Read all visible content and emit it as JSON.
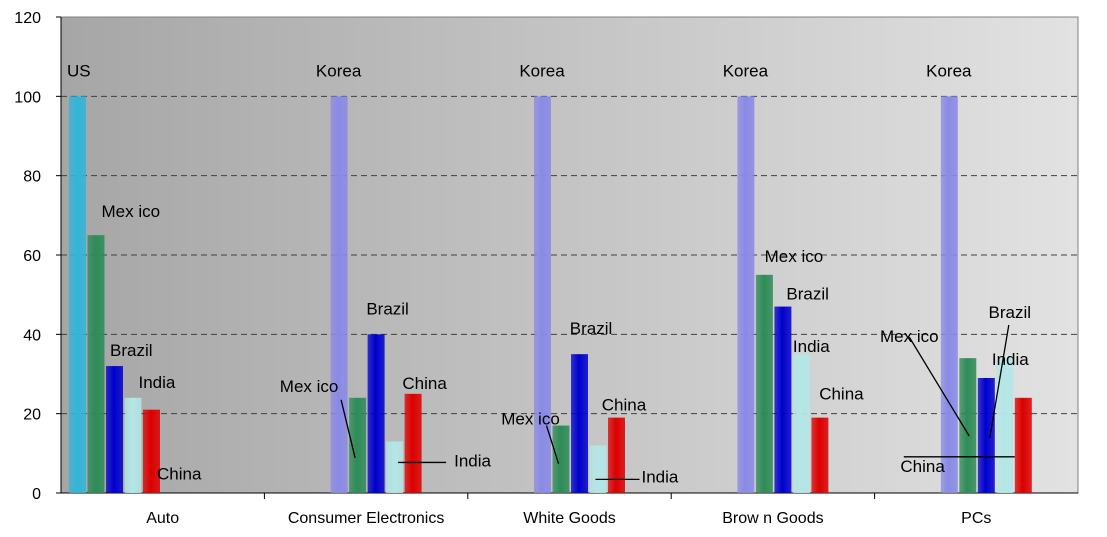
{
  "chart_data": {
    "type": "bar",
    "categories": [
      "Auto",
      "Consumer Electronics",
      "White Goods",
      "Brown Goods",
      "PCs"
    ],
    "ylim": [
      0,
      120
    ],
    "yticks": [
      "0",
      "20",
      "40",
      "60",
      "80",
      "100",
      "120"
    ],
    "grid": "dashed horizontal",
    "groups": [
      {
        "category": "Auto",
        "bars": [
          {
            "country": "US",
            "value": 100,
            "color": "#33b5d9"
          },
          {
            "country": "Mexico",
            "value": 65,
            "color": "#2e8b57"
          },
          {
            "country": "Brazil",
            "value": 32,
            "color": "#0000cd"
          },
          {
            "country": "India",
            "value": 24,
            "color": "#b4e6e6"
          },
          {
            "country": "China",
            "value": 21,
            "color": "#dc0000"
          }
        ]
      },
      {
        "category": "Consumer Electronics",
        "bars": [
          {
            "country": "Korea",
            "value": 100,
            "color": "#8a8ae6"
          },
          {
            "country": "Mexico",
            "value": 24,
            "color": "#2e8b57"
          },
          {
            "country": "Brazil",
            "value": 40,
            "color": "#0000cd"
          },
          {
            "country": "India",
            "value": 13,
            "color": "#b4e6e6"
          },
          {
            "country": "China",
            "value": 25,
            "color": "#dc0000"
          }
        ]
      },
      {
        "category": "White Goods",
        "bars": [
          {
            "country": "Korea",
            "value": 100,
            "color": "#8a8ae6"
          },
          {
            "country": "Mexico",
            "value": 17,
            "color": "#2e8b57"
          },
          {
            "country": "Brazil",
            "value": 35,
            "color": "#0000cd"
          },
          {
            "country": "India",
            "value": 12,
            "color": "#b4e6e6"
          },
          {
            "country": "China",
            "value": 19,
            "color": "#dc0000"
          }
        ]
      },
      {
        "category": "Brown Goods",
        "bars": [
          {
            "country": "Korea",
            "value": 100,
            "color": "#8a8ae6"
          },
          {
            "country": "Mexico",
            "value": 55,
            "color": "#2e8b57"
          },
          {
            "country": "Brazil",
            "value": 47,
            "color": "#0000cd"
          },
          {
            "country": "India",
            "value": 35,
            "color": "#b4e6e6"
          },
          {
            "country": "China",
            "value": 19,
            "color": "#dc0000"
          }
        ]
      },
      {
        "category": "PCs",
        "bars": [
          {
            "country": "Korea",
            "value": 100,
            "color": "#8a8ae6"
          },
          {
            "country": "Mexico",
            "value": 34,
            "color": "#2e8b57"
          },
          {
            "country": "Brazil",
            "value": 29,
            "color": "#0000cd"
          },
          {
            "country": "India",
            "value": 34,
            "color": "#b4e6e6"
          },
          {
            "country": "China",
            "value": 24,
            "color": "#dc0000"
          }
        ]
      }
    ],
    "annotations": [
      {
        "group": 0,
        "text": "US"
      },
      {
        "group": 0,
        "text": "Mex ico"
      },
      {
        "group": 0,
        "text": "Brazil"
      },
      {
        "group": 0,
        "text": "India"
      },
      {
        "group": 0,
        "text": "China"
      },
      {
        "group": 1,
        "text": "Korea"
      },
      {
        "group": 1,
        "text": "Mex ico"
      },
      {
        "group": 1,
        "text": "Brazil"
      },
      {
        "group": 1,
        "text": "China"
      },
      {
        "group": 1,
        "text": "India"
      },
      {
        "group": 2,
        "text": "Korea"
      },
      {
        "group": 2,
        "text": "Mex ico"
      },
      {
        "group": 2,
        "text": "Brazil"
      },
      {
        "group": 2,
        "text": "China"
      },
      {
        "group": 2,
        "text": "India"
      },
      {
        "group": 3,
        "text": "Korea"
      },
      {
        "group": 3,
        "text": "Mex ico"
      },
      {
        "group": 3,
        "text": "Brazil"
      },
      {
        "group": 3,
        "text": "India"
      },
      {
        "group": 3,
        "text": "China"
      },
      {
        "group": 4,
        "text": "Korea"
      },
      {
        "group": 4,
        "text": "Mex ico"
      },
      {
        "group": 4,
        "text": "Brazil"
      },
      {
        "group": 4,
        "text": "India"
      },
      {
        "group": 4,
        "text": "China"
      }
    ],
    "category_display": [
      "Auto",
      "Consumer Electronics",
      "White Goods",
      "Brow n Goods",
      "PCs"
    ]
  }
}
